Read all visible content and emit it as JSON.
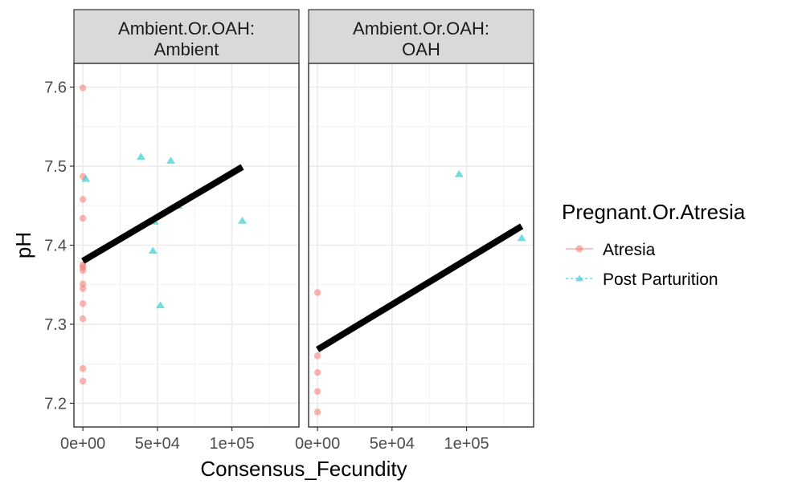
{
  "chart_data": {
    "type": "scatter",
    "xlabel": "Consensus_Fecundity",
    "ylabel": "pH",
    "facet_var": "Ambient.Or.OAH",
    "xlim": [
      -6000,
      145000
    ],
    "ylim": [
      7.17,
      7.63
    ],
    "x_ticks": [
      0,
      50000,
      100000
    ],
    "x_tick_labels": [
      "0e+00",
      "5e+04",
      "1e+05"
    ],
    "y_ticks": [
      7.2,
      7.3,
      7.4,
      7.5,
      7.6
    ],
    "y_tick_labels": [
      "7.2",
      "7.3",
      "7.4",
      "7.5",
      "7.6"
    ],
    "grid": true,
    "legend": {
      "title": "Pregnant.Or.Atresia",
      "placement": "right",
      "entries": [
        {
          "label": "Atresia",
          "color": "#F8766D",
          "shape": "circle"
        },
        {
          "label": "Post Parturition",
          "color": "#00BFC4",
          "shape": "triangle"
        }
      ]
    },
    "panels": [
      {
        "strip_line1": "Ambient.Or.OAH:",
        "strip_line2": "Ambient",
        "series": [
          {
            "name": "Atresia",
            "points": [
              {
                "x": 0,
                "y": 7.599
              },
              {
                "x": 0,
                "y": 7.487
              },
              {
                "x": 0,
                "y": 7.458
              },
              {
                "x": 0,
                "y": 7.434
              },
              {
                "x": 0,
                "y": 7.375
              },
              {
                "x": 0,
                "y": 7.372
              },
              {
                "x": 0,
                "y": 7.368
              },
              {
                "x": 0,
                "y": 7.351
              },
              {
                "x": 0,
                "y": 7.345
              },
              {
                "x": 0,
                "y": 7.326
              },
              {
                "x": 0,
                "y": 7.307
              },
              {
                "x": 0,
                "y": 7.244
              },
              {
                "x": 0,
                "y": 7.228
              }
            ]
          },
          {
            "name": "Post Parturition",
            "points": [
              {
                "x": 2000,
                "y": 7.484
              },
              {
                "x": 39000,
                "y": 7.512
              },
              {
                "x": 59000,
                "y": 7.507
              },
              {
                "x": 47000,
                "y": 7.393
              },
              {
                "x": 52000,
                "y": 7.324
              },
              {
                "x": 107000,
                "y": 7.431
              },
              {
                "x": 48000,
                "y": 7.43
              },
              {
                "x": 64000,
                "y": 7.45
              }
            ]
          }
        ],
        "fit": {
          "x": [
            0,
            107000
          ],
          "y": [
            7.38,
            7.499
          ]
        }
      },
      {
        "strip_line1": "Ambient.Or.OAH:",
        "strip_line2": "OAH",
        "series": [
          {
            "name": "Atresia",
            "points": [
              {
                "x": 0,
                "y": 7.34
              },
              {
                "x": 0,
                "y": 7.26
              },
              {
                "x": 0,
                "y": 7.239
              },
              {
                "x": 0,
                "y": 7.215
              },
              {
                "x": 0,
                "y": 7.189
              }
            ]
          },
          {
            "name": "Post Parturition",
            "points": [
              {
                "x": 95000,
                "y": 7.49
              },
              {
                "x": 137000,
                "y": 7.409
              }
            ]
          }
        ],
        "fit": {
          "x": [
            0,
            137000
          ],
          "y": [
            7.268,
            7.424
          ]
        }
      }
    ]
  }
}
